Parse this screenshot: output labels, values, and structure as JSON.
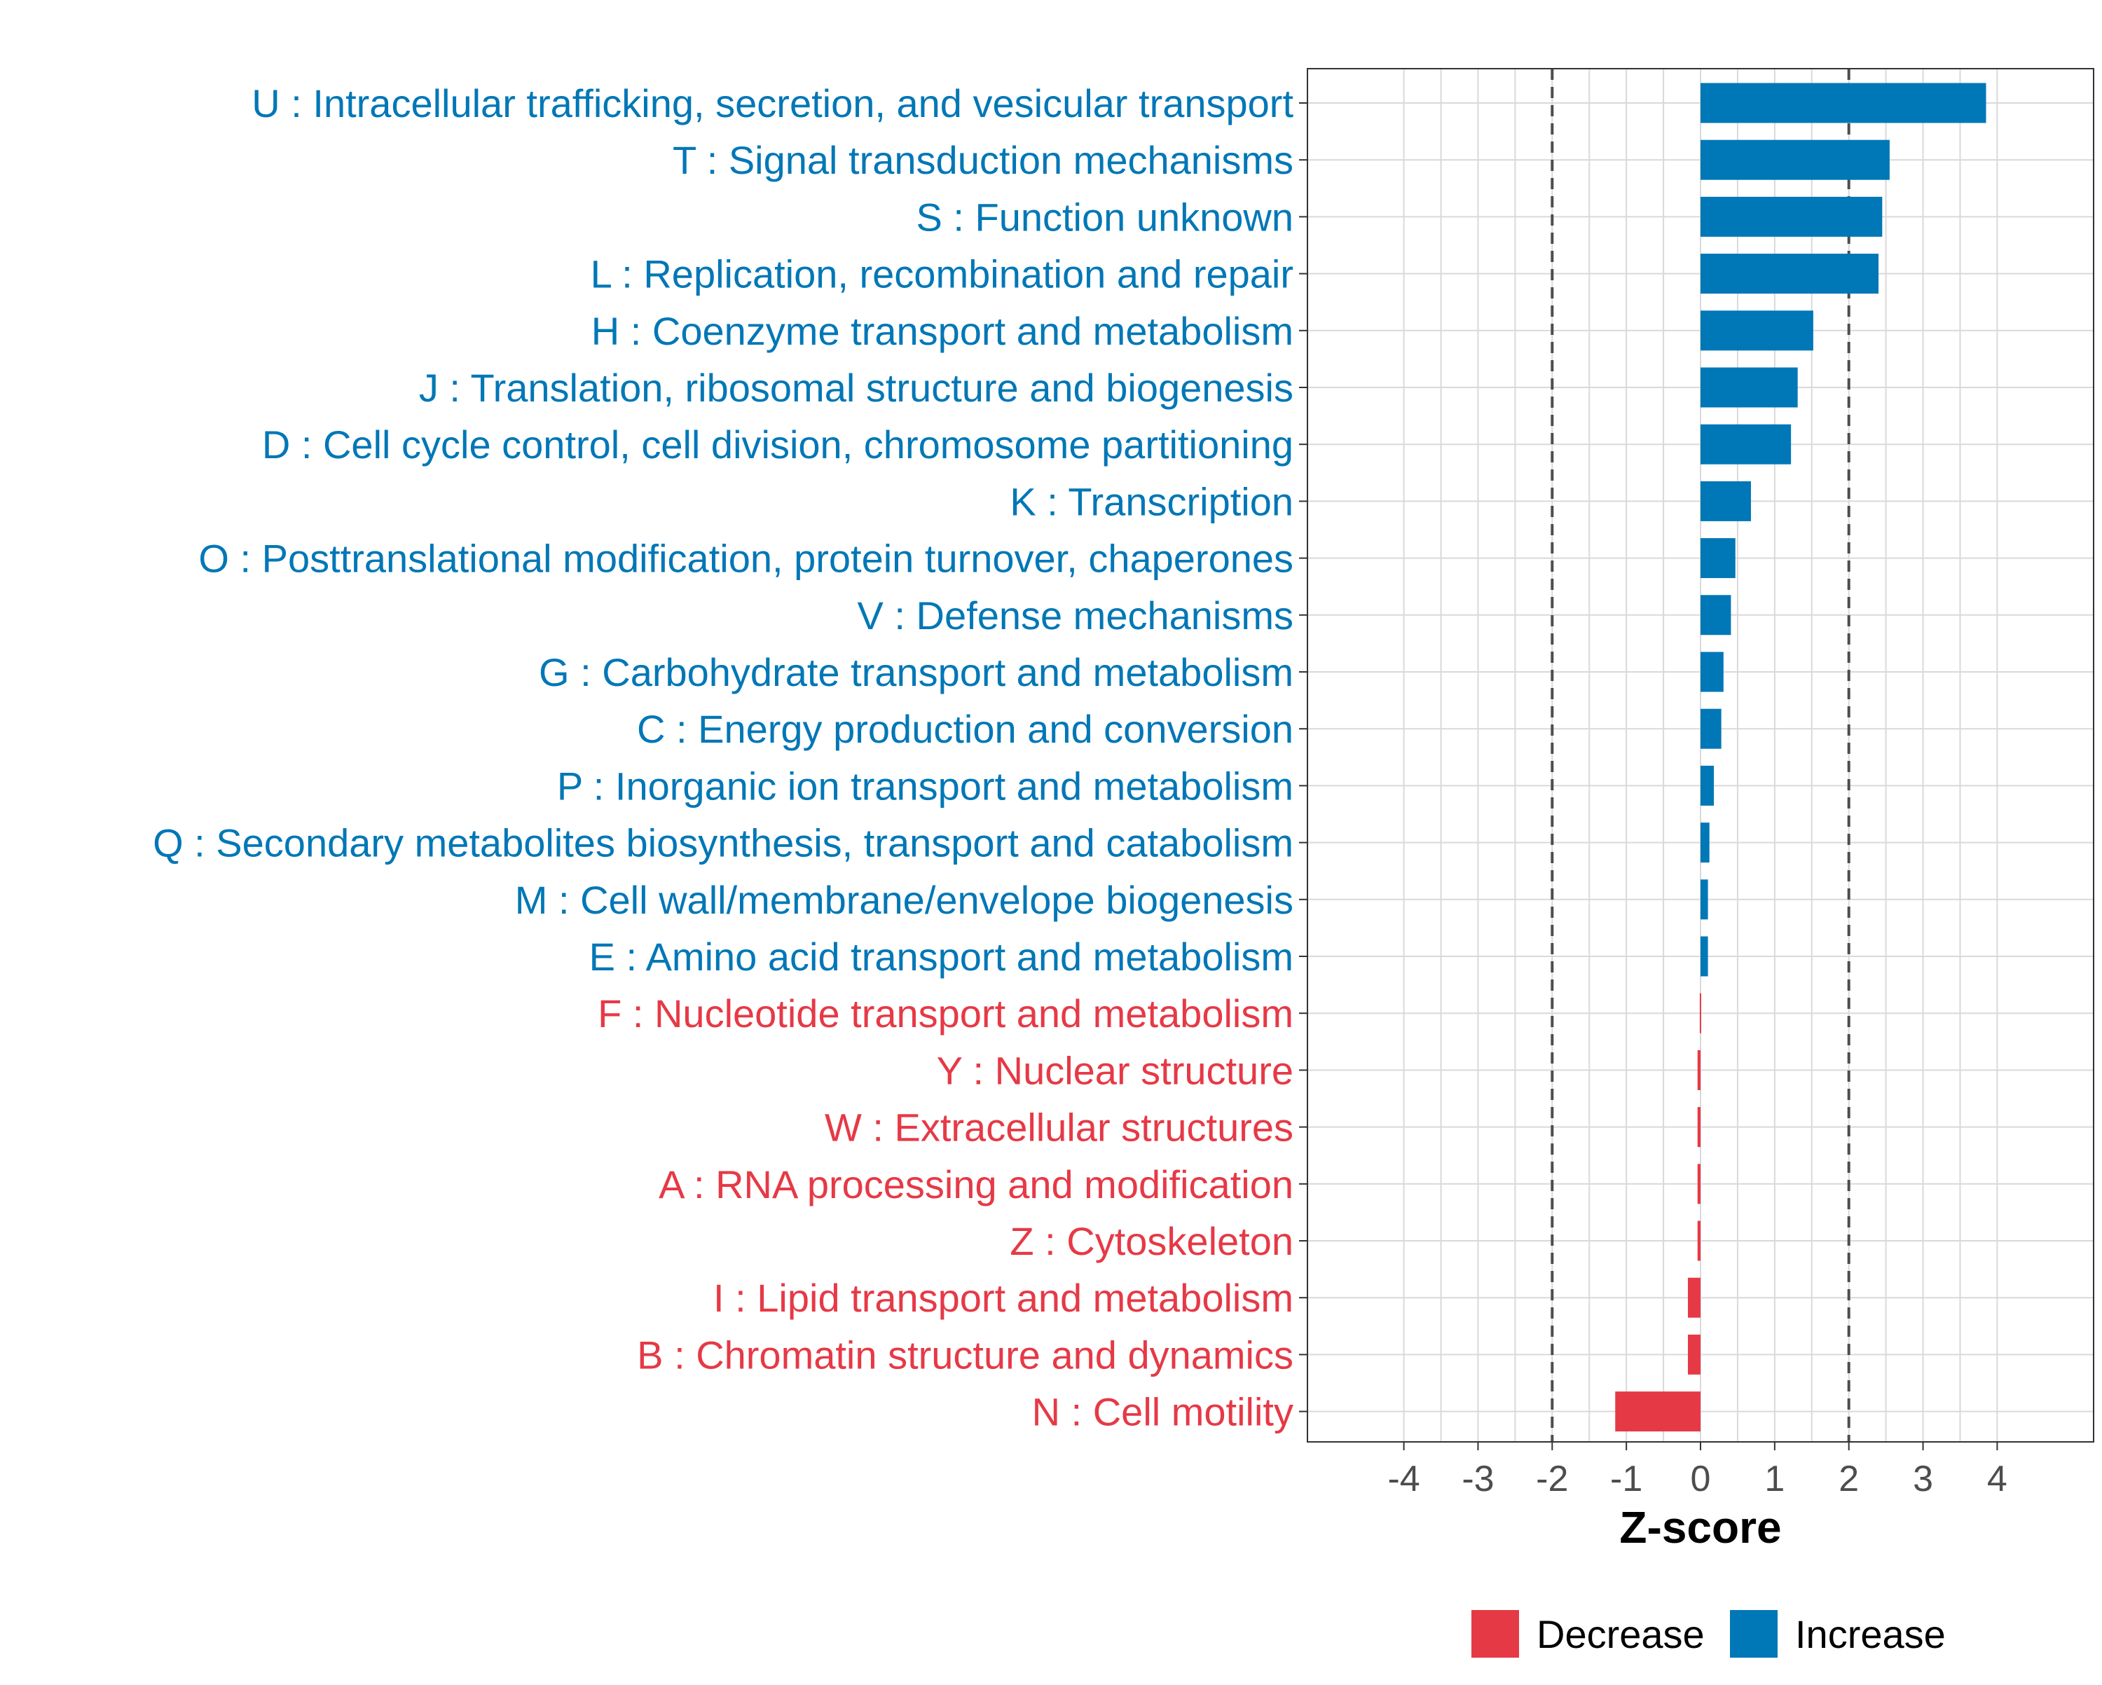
{
  "chart_data": {
    "type": "bar",
    "orientation": "horizontal",
    "title": "",
    "xlabel": "Z-score",
    "ylabel": "",
    "xlim": [
      -5.3,
      5.3
    ],
    "xticks": [
      -4,
      -3,
      -2,
      -1,
      0,
      1,
      2,
      3,
      4
    ],
    "xtick_labels": [
      "-4",
      "-3",
      "-2",
      "-1",
      "0",
      "1",
      "2",
      "3",
      "4"
    ],
    "reference_lines": [
      -2,
      2
    ],
    "grid": true,
    "legend_position": "bottom",
    "categories": [
      "U : Intracellular trafficking, secretion, and vesicular transport",
      "T : Signal transduction mechanisms",
      "S : Function unknown",
      "L : Replication, recombination and repair",
      "H : Coenzyme transport and metabolism",
      "J : Translation, ribosomal structure and biogenesis",
      "D : Cell cycle control, cell division, chromosome partitioning",
      "K : Transcription",
      "O : Posttranslational modification, protein turnover, chaperones",
      "V : Defense mechanisms",
      "G : Carbohydrate transport and metabolism",
      "C : Energy production and conversion",
      "P : Inorganic ion transport and metabolism",
      "Q : Secondary metabolites biosynthesis, transport and catabolism",
      "M : Cell wall/membrane/envelope biogenesis",
      "E : Amino acid transport and metabolism",
      "F : Nucleotide transport and metabolism",
      "Y : Nuclear structure",
      "W : Extracellular structures",
      "A : RNA processing and modification",
      "Z : Cytoskeleton",
      "I : Lipid transport and metabolism",
      "B : Chromatin structure and dynamics",
      "N : Cell motility"
    ],
    "values": [
      3.85,
      2.55,
      2.45,
      2.4,
      1.52,
      1.31,
      1.22,
      0.68,
      0.47,
      0.41,
      0.31,
      0.28,
      0.18,
      0.12,
      0.1,
      0.1,
      -0.01,
      -0.04,
      -0.04,
      -0.04,
      -0.04,
      -0.17,
      -0.17,
      -1.15
    ],
    "groups": [
      "Increase",
      "Increase",
      "Increase",
      "Increase",
      "Increase",
      "Increase",
      "Increase",
      "Increase",
      "Increase",
      "Increase",
      "Increase",
      "Increase",
      "Increase",
      "Increase",
      "Increase",
      "Increase",
      "Decrease",
      "Decrease",
      "Decrease",
      "Decrease",
      "Decrease",
      "Decrease",
      "Decrease",
      "Decrease"
    ],
    "legend": [
      {
        "name": "Decrease",
        "color": "#e63946"
      },
      {
        "name": "Increase",
        "color": "#0077b6"
      }
    ],
    "colors": {
      "Increase": "#0077b6",
      "Decrease": "#e63946",
      "grid": "#d9d9d9",
      "reference_line": "#4d4d4d",
      "tick_text": "#4d4d4d"
    }
  }
}
